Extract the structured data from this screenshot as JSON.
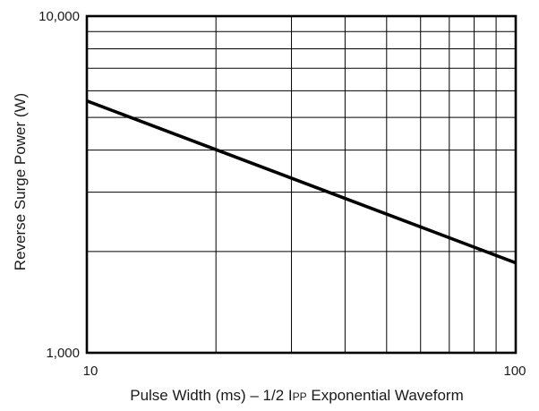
{
  "chart_data": {
    "type": "line",
    "xscale": "log",
    "yscale": "log",
    "xlim": [
      10,
      100
    ],
    "ylim": [
      1000,
      10000
    ],
    "x_tick_labels": [
      "10",
      "100"
    ],
    "y_tick_labels": [
      "1,000",
      "10,000"
    ],
    "grid": true,
    "xlabel": {
      "before": "Pulse Width (ms) – 1/2 I",
      "subscript": "PP",
      "after": " Exponential Waveform"
    },
    "ylabel": "Reverse Surge Power (W)",
    "series": [
      {
        "x": [
          10,
          100
        ],
        "y": [
          5600,
          1850
        ],
        "color": "#000000"
      }
    ]
  }
}
